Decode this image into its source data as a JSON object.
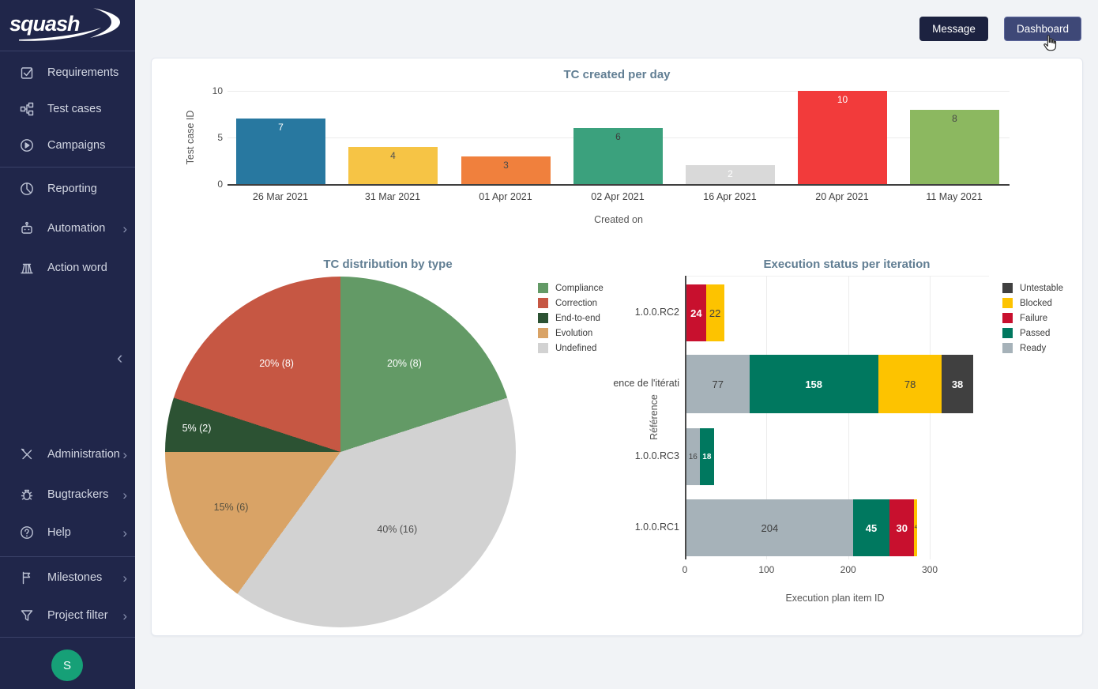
{
  "app": {
    "logo_text": "squash"
  },
  "topbar": {
    "message_label": "Message",
    "dashboard_label": "Dashboard"
  },
  "sidebar": {
    "avatar_letter": "S",
    "items": [
      {
        "label": "Requirements",
        "icon": "requirements-checkbox-icon",
        "chevron": false
      },
      {
        "label": "Test cases",
        "icon": "test-cases-tree-icon",
        "chevron": false
      },
      {
        "label": "Campaigns",
        "icon": "campaigns-play-icon",
        "chevron": false
      },
      {
        "label": "Reporting",
        "icon": "reporting-pie-icon",
        "chevron": false
      },
      {
        "label": "Automation",
        "icon": "automation-robot-icon",
        "chevron": true
      },
      {
        "label": "Action word",
        "icon": "action-word-library-icon",
        "chevron": false
      },
      {
        "label": "Administration",
        "icon": "administration-tools-icon",
        "chevron": true
      },
      {
        "label": "Bugtrackers",
        "icon": "bugtrackers-bug-icon",
        "chevron": true
      },
      {
        "label": "Help",
        "icon": "help-question-icon",
        "chevron": true
      },
      {
        "label": "Milestones",
        "icon": "milestones-flag-icon",
        "chevron": true
      },
      {
        "label": "Project filter",
        "icon": "project-filter-funnel-icon",
        "chevron": true
      }
    ]
  },
  "chart_data": [
    {
      "type": "bar",
      "title": "TC created per day",
      "xlabel": "Created on",
      "ylabel": "Test case ID",
      "ylim": [
        0,
        10
      ],
      "yticks": [
        0,
        5,
        10
      ],
      "categories": [
        "26 Mar 2021",
        "31 Mar 2021",
        "01 Apr 2021",
        "02 Apr 2021",
        "16 Apr 2021",
        "20 Apr 2021",
        "11 May 2021"
      ],
      "values": [
        7,
        4,
        3,
        6,
        2,
        10,
        8
      ],
      "bar_colors": [
        "#2878a0",
        "#f6c445",
        "#f0803d",
        "#3ba17d",
        "#d9d9d9",
        "#f23b3b",
        "#8cb860"
      ],
      "value_label_colors": [
        "#ffffff",
        "#515151",
        "#4a4a4a",
        "#3c3c3c",
        "#ffffff",
        "#ffffff",
        "#474747"
      ]
    },
    {
      "type": "pie",
      "title": "TC distribution by type",
      "slices": [
        {
          "label": "Compliance",
          "percent": 20,
          "count": 8,
          "display": "20% (8)",
          "color": "#639a66",
          "text_color": "#ffffff"
        },
        {
          "label": "Undefined",
          "percent": 40,
          "count": 16,
          "display": "40% (16)",
          "color": "#d2d2d2",
          "text_color": "#4f4f4f"
        },
        {
          "label": "Evolution",
          "percent": 15,
          "count": 6,
          "display": "15% (6)",
          "color": "#d9a366",
          "text_color": "#56503f"
        },
        {
          "label": "End-to-end",
          "percent": 5,
          "count": 2,
          "display": "5% (2)",
          "color": "#2c5233",
          "text_color": "#ffffff"
        },
        {
          "label": "Correction",
          "percent": 20,
          "count": 8,
          "display": "20% (8)",
          "color": "#c65743",
          "text_color": "#ffffff"
        }
      ],
      "legend": [
        {
          "label": "Compliance",
          "color": "#639a66"
        },
        {
          "label": "Correction",
          "color": "#c65743"
        },
        {
          "label": "End-to-end",
          "color": "#2c5233"
        },
        {
          "label": "Evolution",
          "color": "#d9a366"
        },
        {
          "label": "Undefined",
          "color": "#d2d2d2"
        }
      ]
    },
    {
      "type": "stacked-bar-horizontal",
      "title": "Execution status per iteration",
      "xlabel": "Execution plan item ID",
      "ylabel": "Référence",
      "xticks": [
        0,
        100,
        200,
        300
      ],
      "statuses": [
        {
          "name": "Untestable",
          "color": "#404040",
          "text_color": "#ffffff"
        },
        {
          "name": "Blocked",
          "color": "#fdc300",
          "text_color": "#3f3f3f"
        },
        {
          "name": "Failure",
          "color": "#c8102e",
          "text_color": "#ffffff"
        },
        {
          "name": "Passed",
          "color": "#00785f",
          "text_color": "#ffffff"
        },
        {
          "name": "Ready",
          "color": "#a6b2b9",
          "text_color": "#3f3f3f"
        }
      ],
      "rows": [
        {
          "category": "1.0.0.RC2",
          "segments": [
            {
              "status": "Failure",
              "value": 24
            },
            {
              "status": "Blocked",
              "value": 22
            }
          ]
        },
        {
          "category": "ence de l'itérati",
          "segments": [
            {
              "status": "Ready",
              "value": 77
            },
            {
              "status": "Passed",
              "value": 158
            },
            {
              "status": "Blocked",
              "value": 78
            },
            {
              "status": "Untestable",
              "value": 38
            }
          ]
        },
        {
          "category": "1.0.0.RC3",
          "segments": [
            {
              "status": "Ready",
              "value": 16
            },
            {
              "status": "Passed",
              "value": 18
            }
          ]
        },
        {
          "category": "1.0.0.RC1",
          "segments": [
            {
              "status": "Ready",
              "value": 204
            },
            {
              "status": "Passed",
              "value": 45
            },
            {
              "status": "Failure",
              "value": 30
            },
            {
              "status": "Blocked",
              "value": 4
            }
          ]
        }
      ]
    }
  ]
}
